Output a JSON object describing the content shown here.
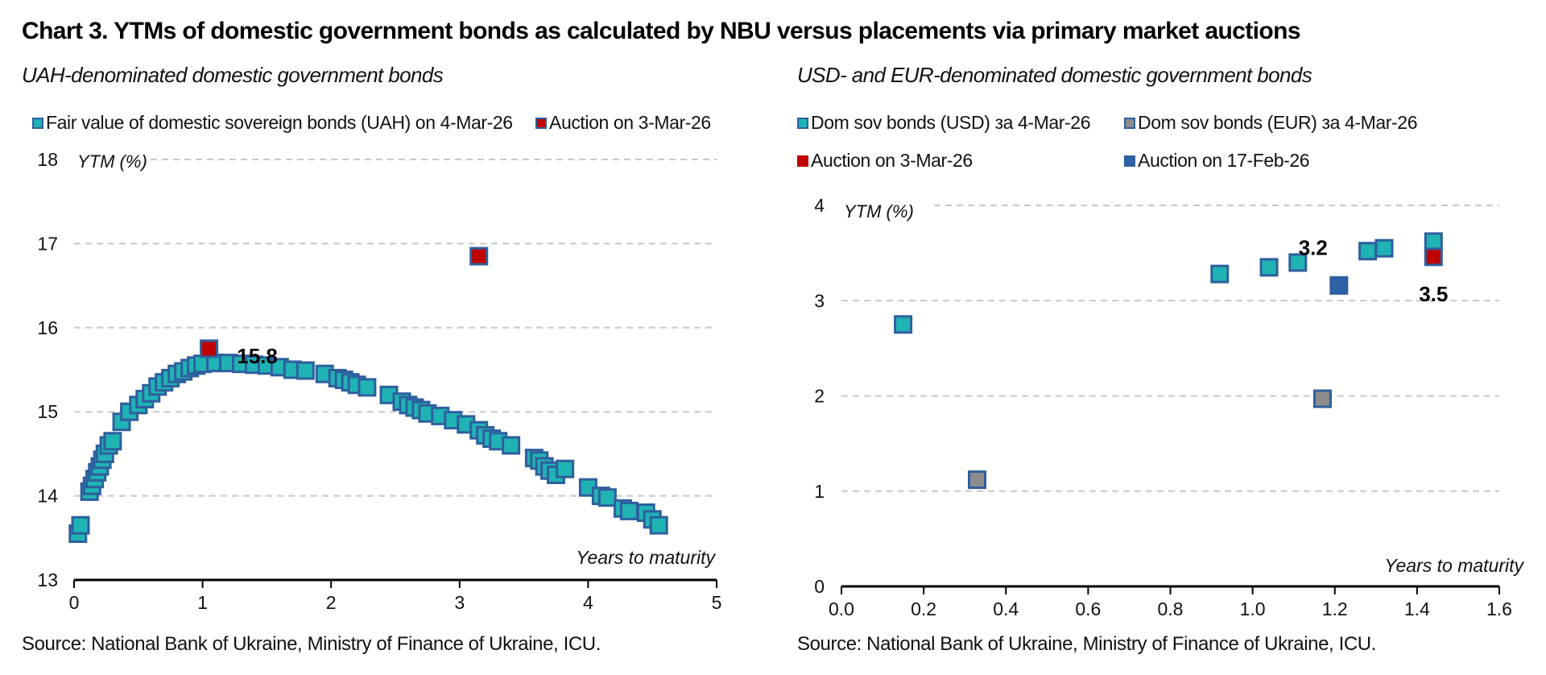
{
  "page": {
    "title": "Chart 3. YTMs of domestic government bonds as calculated by NBU versus placements via primary market auctions"
  },
  "colors": {
    "teal": "#1fb3b3",
    "red": "#c00000",
    "gray": "#8c8c8c",
    "blue": "#2e62a8",
    "marker_edge": "#2e5f9e",
    "grid": "#c8c8c8"
  },
  "chart_data": [
    {
      "type": "scatter",
      "subtitle": "UAH-denominated domestic government bonds",
      "ylabel": "YTM (%)",
      "xlabel": "Years to maturity",
      "xlim": [
        0,
        5
      ],
      "ylim": [
        13,
        18
      ],
      "xticks": [
        "0",
        "1",
        "2",
        "3",
        "4",
        "5"
      ],
      "yticks": [
        "13",
        "14",
        "15",
        "16",
        "17",
        "18"
      ],
      "grid": true,
      "source": "Source: National Bank of Ukraine, Ministry of Finance of Ukraine, ICU.",
      "series": [
        {
          "name": "Fair value of domestic sovereign bonds (UAH) on 4-Mar-26",
          "color": "teal",
          "x": [
            0.03,
            0.05,
            0.12,
            0.14,
            0.16,
            0.18,
            0.2,
            0.22,
            0.24,
            0.27,
            0.3,
            0.37,
            0.43,
            0.5,
            0.55,
            0.6,
            0.65,
            0.7,
            0.75,
            0.8,
            0.85,
            0.9,
            0.95,
            1.0,
            1.1,
            1.2,
            1.3,
            1.4,
            1.5,
            1.6,
            1.7,
            1.8,
            1.95,
            2.05,
            2.1,
            2.15,
            2.2,
            2.28,
            2.45,
            2.55,
            2.6,
            2.65,
            2.7,
            2.75,
            2.85,
            2.95,
            3.05,
            3.15,
            3.2,
            3.25,
            3.3,
            3.4,
            3.58,
            3.62,
            3.66,
            3.7,
            3.75,
            3.82,
            4.0,
            4.1,
            4.15,
            4.27,
            4.32,
            4.45,
            4.5,
            4.55
          ],
          "values": [
            13.55,
            13.65,
            14.05,
            14.12,
            14.2,
            14.28,
            14.35,
            14.43,
            14.5,
            14.6,
            14.65,
            14.88,
            15.0,
            15.08,
            15.15,
            15.22,
            15.3,
            15.35,
            15.4,
            15.45,
            15.48,
            15.52,
            15.55,
            15.57,
            15.58,
            15.58,
            15.57,
            15.56,
            15.55,
            15.53,
            15.5,
            15.49,
            15.45,
            15.4,
            15.38,
            15.35,
            15.32,
            15.29,
            15.2,
            15.12,
            15.08,
            15.05,
            15.02,
            14.98,
            14.95,
            14.9,
            14.85,
            14.78,
            14.72,
            14.68,
            14.65,
            14.6,
            14.45,
            14.42,
            14.35,
            14.3,
            14.25,
            14.32,
            14.1,
            14.0,
            13.98,
            13.85,
            13.82,
            13.8,
            13.72,
            13.65
          ]
        },
        {
          "name": "Auction on 3-Mar-26",
          "color": "red",
          "x": [
            1.05,
            3.15
          ],
          "values": [
            15.75,
            16.85
          ]
        }
      ],
      "annotations": [
        {
          "text": "15.8",
          "x": 1.05,
          "y": 15.75
        }
      ]
    },
    {
      "type": "scatter",
      "subtitle": "USD- and EUR-denominated domestic government bonds",
      "ylabel": "YTM (%)",
      "xlabel": "Years to maturity",
      "xlim": [
        0,
        1.6
      ],
      "ylim": [
        0,
        4
      ],
      "xticks": [
        "0.0",
        "0.2",
        "0.4",
        "0.6",
        "0.8",
        "1.0",
        "1.2",
        "1.4",
        "1.6"
      ],
      "yticks": [
        "0",
        "1",
        "2",
        "3",
        "4"
      ],
      "grid": true,
      "source": "Source: National Bank of Ukraine, Ministry of Finance of Ukraine, ICU.",
      "series": [
        {
          "name": "Dom sov bonds (USD) за 4-Mar-26",
          "color": "teal",
          "x": [
            0.15,
            0.92,
            1.04,
            1.11,
            1.28,
            1.32,
            1.44
          ],
          "values": [
            2.75,
            3.28,
            3.35,
            3.4,
            3.52,
            3.55,
            3.62
          ]
        },
        {
          "name": "Dom sov bonds (EUR) за 4-Mar-26",
          "color": "gray",
          "x": [
            0.33,
            1.17
          ],
          "values": [
            1.12,
            1.97
          ]
        },
        {
          "name": "Auction on 3-Mar-26",
          "color": "red",
          "x": [
            1.44
          ],
          "values": [
            3.46
          ]
        },
        {
          "name": "Auction on 17-Feb-26",
          "color": "blue",
          "x": [
            1.21
          ],
          "values": [
            3.16
          ]
        }
      ],
      "annotations": [
        {
          "text": "3.2",
          "x": 1.21,
          "y": 3.16
        },
        {
          "text": "3.5",
          "x": 1.44,
          "y": 3.46
        }
      ]
    }
  ]
}
